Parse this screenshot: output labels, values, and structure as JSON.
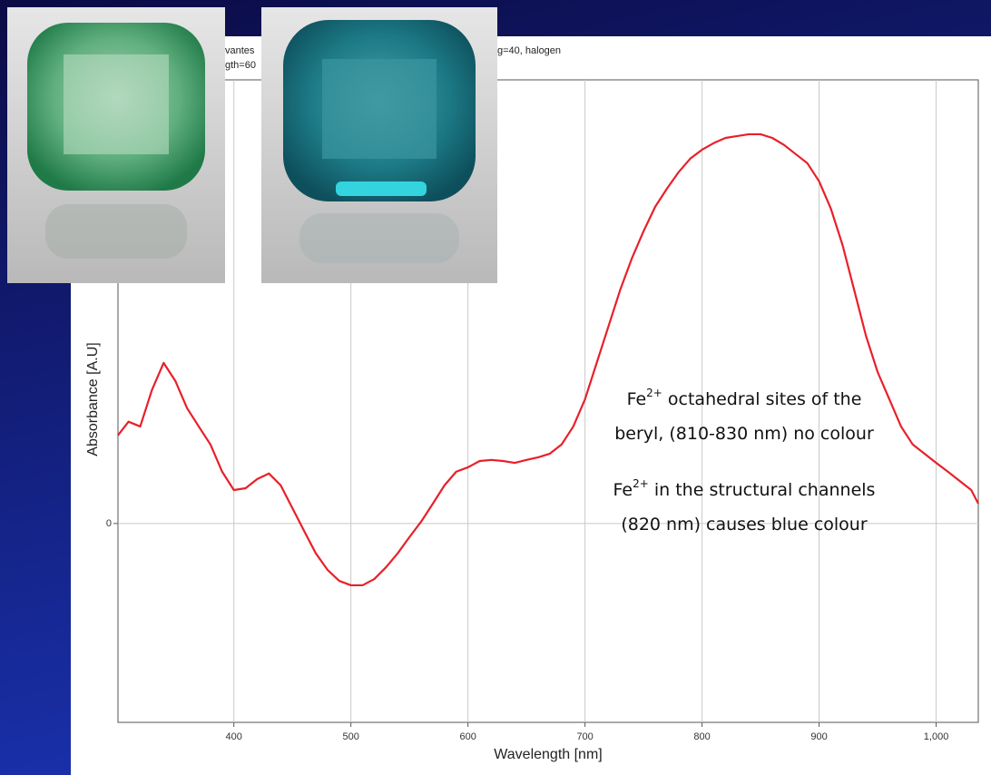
{
  "chart_data": {
    "type": "line",
    "header_fragments": [
      "vantes",
      "g=40, halogen",
      "gth=60"
    ],
    "x_label": "Wavelength [nm]",
    "y_label": "Absorbance [A.U]",
    "xlim": [
      301,
      1036
    ],
    "ylim": [
      -0.541,
      1.207
    ],
    "xticks": [
      400,
      500,
      600,
      700,
      800,
      900,
      {
        "value": 1000,
        "label": "1,000"
      }
    ],
    "yticks": [
      0
    ],
    "grid": true,
    "annotations": [
      {
        "lines": [
          [
            "Fe",
            "2+",
            " octahedral sites of the"
          ],
          [
            "beryl, (810-830 nm) no colour"
          ]
        ]
      },
      {
        "lines": [
          [
            "Fe",
            "2+",
            " in the structural channels"
          ],
          [
            "(820 nm) causes blue colour"
          ]
        ]
      }
    ],
    "series": [
      {
        "color": "#e8202a",
        "x": [
          301,
          310,
          320,
          330,
          340,
          350,
          360,
          370,
          380,
          390,
          400,
          410,
          420,
          430,
          440,
          450,
          460,
          470,
          480,
          490,
          500,
          510,
          520,
          530,
          540,
          550,
          560,
          570,
          580,
          590,
          600,
          610,
          620,
          630,
          640,
          650,
          660,
          670,
          680,
          690,
          700,
          710,
          720,
          730,
          740,
          750,
          760,
          770,
          780,
          790,
          800,
          810,
          820,
          830,
          840,
          850,
          860,
          870,
          880,
          890,
          900,
          910,
          920,
          930,
          940,
          950,
          960,
          970,
          980,
          990,
          1000,
          1010,
          1020,
          1030,
          1036
        ],
        "values": [
          0.24,
          0.277,
          0.264,
          0.363,
          0.437,
          0.388,
          0.314,
          0.264,
          0.215,
          0.141,
          0.091,
          0.096,
          0.121,
          0.136,
          0.104,
          0.042,
          -0.02,
          -0.081,
          -0.126,
          -0.156,
          -0.168,
          -0.168,
          -0.151,
          -0.119,
          -0.081,
          -0.037,
          0.005,
          0.054,
          0.104,
          0.141,
          0.153,
          0.17,
          0.173,
          0.17,
          0.165,
          0.173,
          0.18,
          0.19,
          0.215,
          0.264,
          0.338,
          0.437,
          0.536,
          0.635,
          0.721,
          0.795,
          0.862,
          0.911,
          0.956,
          0.993,
          1.017,
          1.035,
          1.049,
          1.054,
          1.059,
          1.059,
          1.049,
          1.03,
          1.005,
          0.98,
          0.931,
          0.857,
          0.758,
          0.635,
          0.511,
          0.412,
          0.338,
          0.264,
          0.215,
          0.19,
          0.165,
          0.141,
          0.116,
          0.091,
          0.054
        ]
      }
    ]
  }
}
